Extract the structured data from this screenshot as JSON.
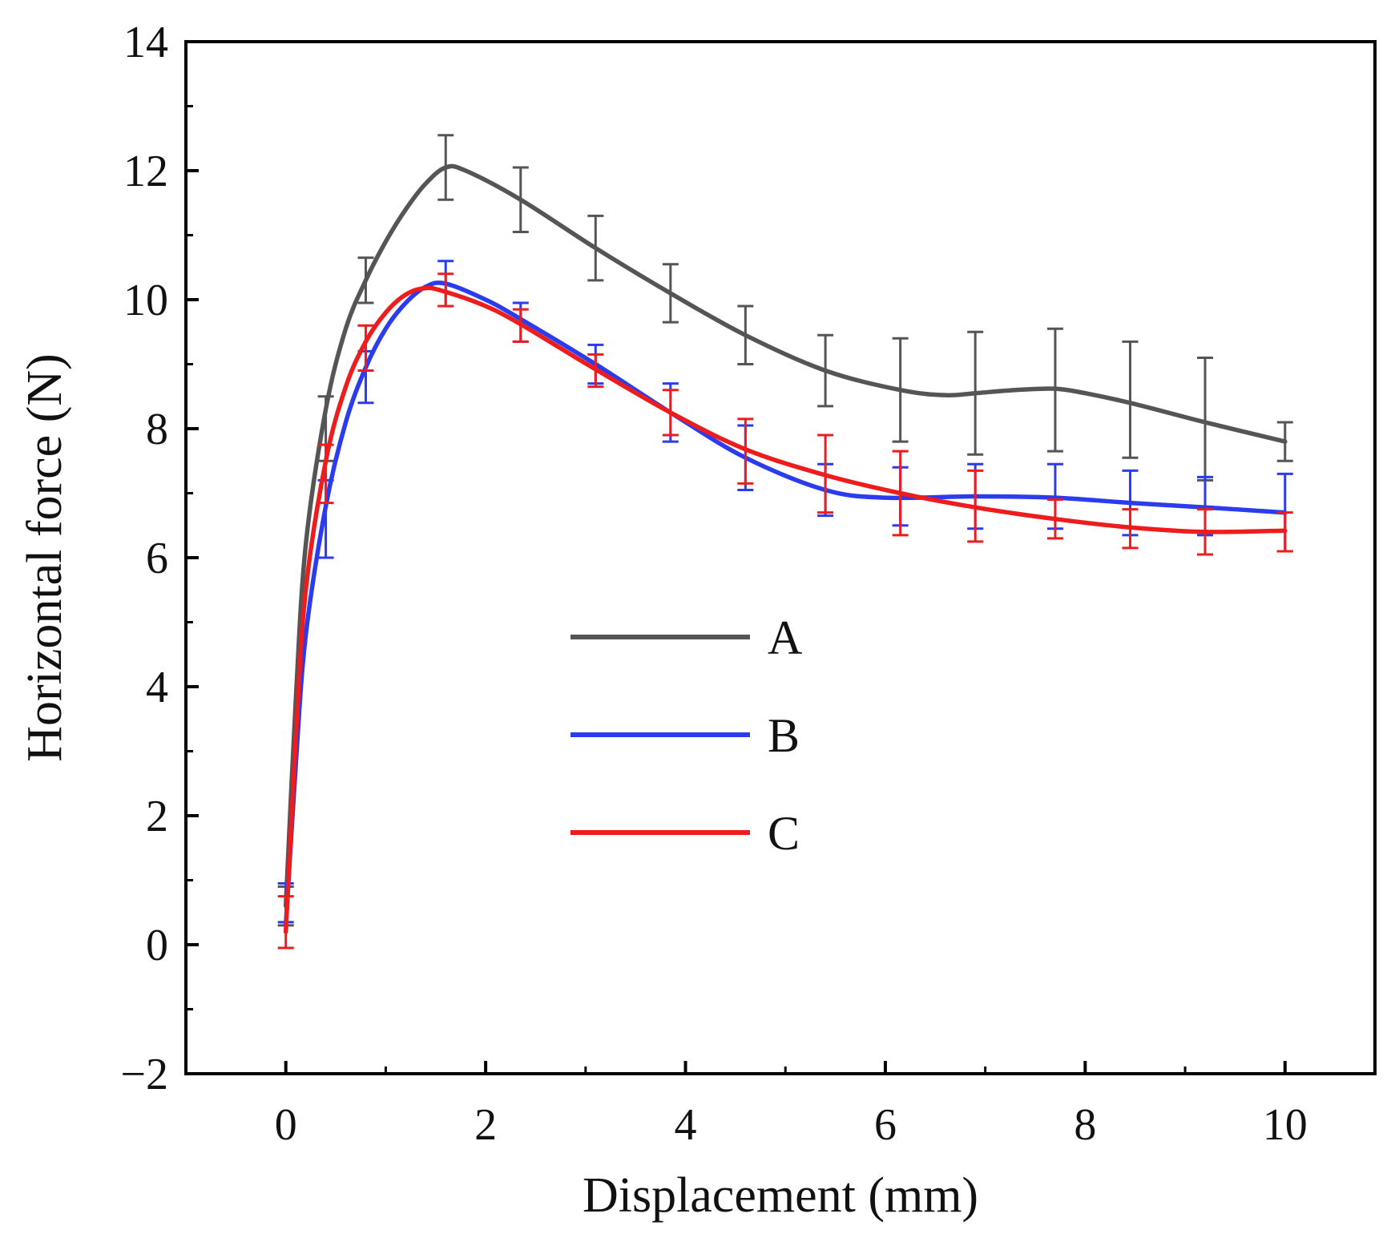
{
  "chart_data": {
    "type": "line",
    "title": "",
    "xlabel": "Displacement (mm)",
    "ylabel": "Horizontal force (N)",
    "xlim": [
      -1,
      10.9
    ],
    "ylim": [
      -2,
      14
    ],
    "x_ticks": [
      0,
      2,
      4,
      6,
      8,
      10
    ],
    "x_tick_labels": [
      "0",
      "2",
      "4",
      "6",
      "8",
      "10"
    ],
    "y_ticks": [
      -2,
      0,
      2,
      4,
      6,
      8,
      10,
      12,
      14
    ],
    "y_tick_labels": [
      "−2",
      "0",
      "2",
      "4",
      "6",
      "8",
      "10",
      "12",
      "14"
    ],
    "grid": false,
    "legend_position": "center",
    "x": [
      0,
      0.4,
      0.8,
      1.6,
      2.35,
      3.1,
      3.85,
      4.6,
      5.4,
      6.15,
      6.9,
      7.7,
      8.45,
      9.2,
      10.0
    ],
    "series": [
      {
        "name": "A",
        "color": "#555555",
        "values": [
          0.6,
          8.0,
          10.3,
          12.05,
          11.55,
          10.8,
          10.1,
          9.45,
          8.9,
          8.6,
          8.55,
          8.6,
          8.45,
          8.15,
          7.8
        ],
        "errors": [
          0.3,
          0.5,
          0.35,
          0.5,
          0.5,
          0.5,
          0.45,
          0.45,
          0.55,
          0.8,
          0.95,
          0.95,
          0.9,
          0.95,
          0.3
        ],
        "curve": [
          [
            0,
            0.6
          ],
          [
            0.1,
            3.8
          ],
          [
            0.2,
            6.2
          ],
          [
            0.4,
            8.3
          ],
          [
            0.6,
            9.55
          ],
          [
            0.8,
            10.3
          ],
          [
            1.0,
            10.9
          ],
          [
            1.2,
            11.4
          ],
          [
            1.4,
            11.8
          ],
          [
            1.6,
            12.05
          ],
          [
            1.8,
            12.0
          ],
          [
            2.35,
            11.55
          ],
          [
            3.1,
            10.8
          ],
          [
            3.85,
            10.1
          ],
          [
            4.6,
            9.45
          ],
          [
            5.4,
            8.9
          ],
          [
            6.15,
            8.6
          ],
          [
            6.6,
            8.52
          ],
          [
            6.9,
            8.55
          ],
          [
            7.3,
            8.6
          ],
          [
            7.7,
            8.62
          ],
          [
            8.0,
            8.55
          ],
          [
            8.45,
            8.4
          ],
          [
            9.2,
            8.1
          ],
          [
            10.0,
            7.8
          ]
        ]
      },
      {
        "name": "B",
        "color": "#2b3bf0",
        "values": [
          0.65,
          6.6,
          8.8,
          10.25,
          9.65,
          9.0,
          8.25,
          7.55,
          7.05,
          6.95,
          6.95,
          6.95,
          6.85,
          6.8,
          6.7
        ],
        "errors": [
          0.3,
          0.6,
          0.4,
          0.35,
          0.3,
          0.3,
          0.45,
          0.5,
          0.4,
          0.45,
          0.5,
          0.5,
          0.5,
          0.45,
          0.6
        ],
        "curve": [
          [
            0,
            0.3
          ],
          [
            0.1,
            2.8
          ],
          [
            0.2,
            4.8
          ],
          [
            0.4,
            6.8
          ],
          [
            0.6,
            8.1
          ],
          [
            0.8,
            8.95
          ],
          [
            1.0,
            9.55
          ],
          [
            1.2,
            9.95
          ],
          [
            1.4,
            10.2
          ],
          [
            1.6,
            10.25
          ],
          [
            2.0,
            10.0
          ],
          [
            2.35,
            9.7
          ],
          [
            3.1,
            9.0
          ],
          [
            3.85,
            8.25
          ],
          [
            4.6,
            7.55
          ],
          [
            5.4,
            7.05
          ],
          [
            6.0,
            6.93
          ],
          [
            6.9,
            6.95
          ],
          [
            7.7,
            6.93
          ],
          [
            8.45,
            6.85
          ],
          [
            9.2,
            6.78
          ],
          [
            10.0,
            6.7
          ]
        ]
      },
      {
        "name": "C",
        "color": "#ee1c1c",
        "values": [
          0.35,
          7.3,
          9.25,
          10.15,
          9.6,
          8.9,
          8.25,
          7.65,
          7.3,
          7.0,
          6.8,
          6.6,
          6.45,
          6.4,
          6.4
        ],
        "errors": [
          0.4,
          0.45,
          0.35,
          0.25,
          0.25,
          0.25,
          0.35,
          0.5,
          0.6,
          0.65,
          0.55,
          0.3,
          0.3,
          0.35,
          0.3
        ],
        "curve": [
          [
            0,
            0.2
          ],
          [
            0.1,
            3.2
          ],
          [
            0.2,
            5.5
          ],
          [
            0.4,
            7.5
          ],
          [
            0.6,
            8.65
          ],
          [
            0.8,
            9.35
          ],
          [
            1.0,
            9.8
          ],
          [
            1.2,
            10.08
          ],
          [
            1.4,
            10.18
          ],
          [
            1.6,
            10.12
          ],
          [
            2.0,
            9.9
          ],
          [
            2.35,
            9.62
          ],
          [
            3.1,
            8.92
          ],
          [
            3.85,
            8.25
          ],
          [
            4.6,
            7.68
          ],
          [
            5.4,
            7.28
          ],
          [
            6.15,
            7.0
          ],
          [
            6.9,
            6.78
          ],
          [
            7.7,
            6.6
          ],
          [
            8.45,
            6.47
          ],
          [
            9.2,
            6.4
          ],
          [
            10.0,
            6.42
          ]
        ]
      }
    ]
  }
}
